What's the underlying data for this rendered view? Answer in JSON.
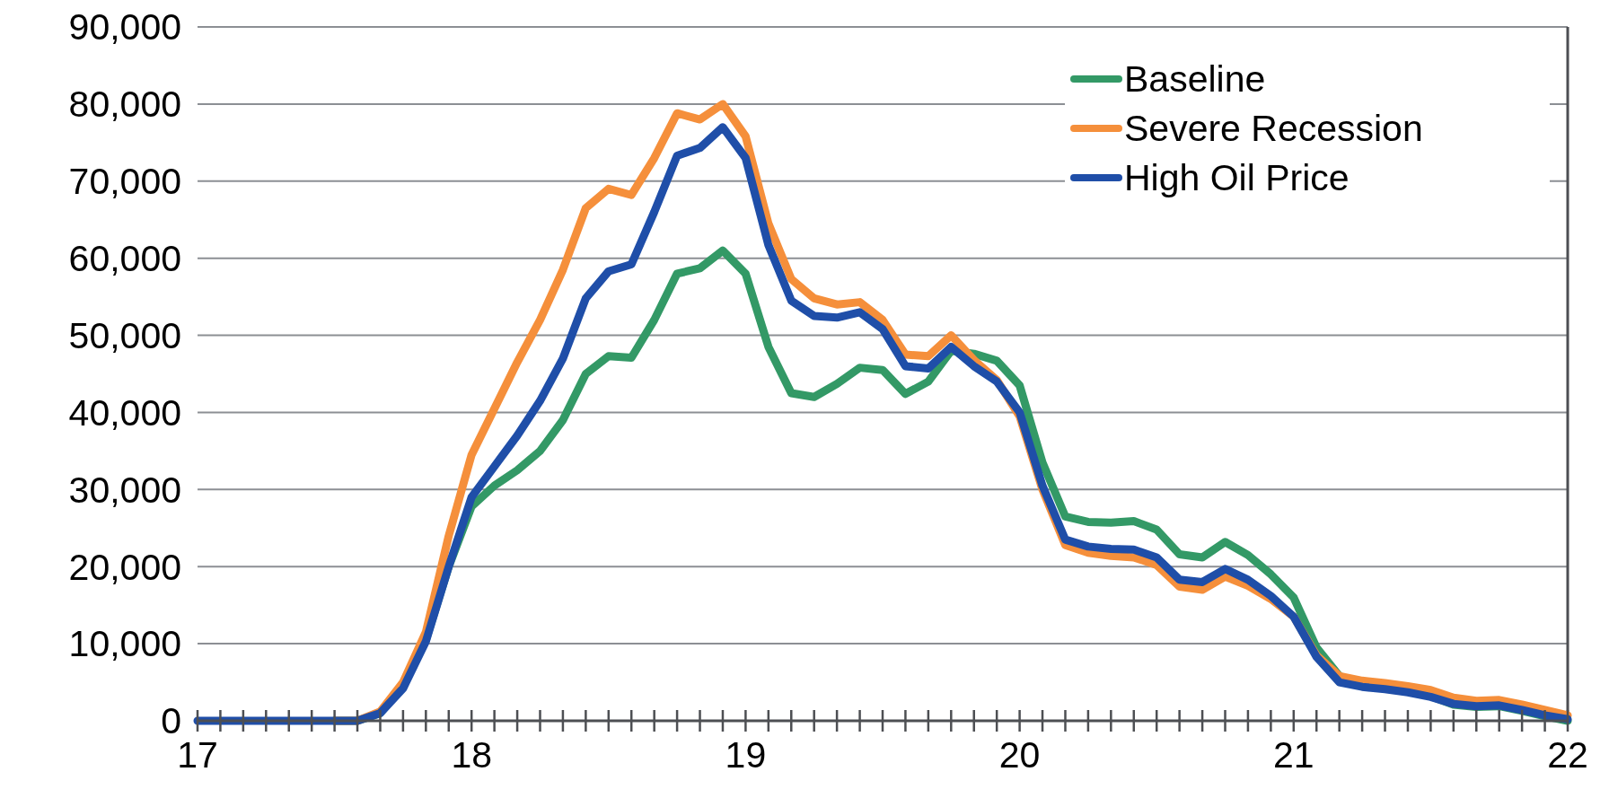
{
  "chart_data": {
    "type": "line",
    "x": [
      17,
      17.0833,
      17.1667,
      17.25,
      17.3333,
      17.4167,
      17.5,
      17.5833,
      17.6667,
      17.75,
      17.8333,
      17.9167,
      18,
      18.0833,
      18.1667,
      18.25,
      18.3333,
      18.4167,
      18.5,
      18.5833,
      18.6667,
      18.75,
      18.8333,
      18.9167,
      19,
      19.0833,
      19.1667,
      19.25,
      19.3333,
      19.4167,
      19.5,
      19.5833,
      19.6667,
      19.75,
      19.8333,
      19.9167,
      20,
      20.0833,
      20.1667,
      20.25,
      20.3333,
      20.4167,
      20.5,
      20.5833,
      20.6667,
      20.75,
      20.8333,
      20.9167,
      21,
      21.0833,
      21.1667,
      21.25,
      21.3333,
      21.4167,
      21.5,
      21.5833,
      21.6667,
      21.75,
      21.8333,
      21.9167,
      22
    ],
    "series": [
      {
        "name": "Baseline",
        "color": "#339966",
        "values": [
          null,
          null,
          null,
          null,
          null,
          null,
          0,
          0,
          1000,
          4500,
          10500,
          20000,
          27800,
          30500,
          32500,
          35000,
          39000,
          45000,
          47300,
          47100,
          52000,
          58000,
          58700,
          61000,
          58000,
          48500,
          42500,
          42000,
          43700,
          45800,
          45500,
          42400,
          44000,
          48000,
          47600,
          46700,
          43500,
          33500,
          26500,
          25800,
          25700,
          25900,
          24800,
          21600,
          21200,
          23200,
          21500,
          19000,
          16000,
          9500,
          5800,
          4700,
          4400,
          3900,
          3200,
          2100,
          1800,
          1900,
          1300,
          600,
          0
        ]
      },
      {
        "name": "Severe Recession",
        "color": "#f58f3b",
        "values": [
          null,
          null,
          null,
          null,
          null,
          null,
          0,
          0,
          1200,
          5000,
          11500,
          24000,
          34500,
          40500,
          46500,
          52000,
          58500,
          66500,
          69000,
          68200,
          73000,
          78800,
          78000,
          80000,
          75800,
          64500,
          57300,
          54800,
          54000,
          54300,
          52000,
          47500,
          47300,
          50000,
          46800,
          44200,
          39500,
          30000,
          22800,
          21800,
          21400,
          21200,
          20200,
          17400,
          17000,
          18700,
          17500,
          15800,
          13500,
          8500,
          5800,
          5200,
          4900,
          4500,
          4000,
          3000,
          2600,
          2700,
          2100,
          1400,
          700
        ]
      },
      {
        "name": "High Oil Price",
        "color": "#1f4ea8",
        "values": [
          0,
          0,
          0,
          0,
          0,
          0,
          0,
          0,
          1000,
          4200,
          10300,
          20000,
          29000,
          33000,
          37000,
          41500,
          47000,
          54800,
          58300,
          59200,
          66000,
          73300,
          74300,
          77000,
          73000,
          61700,
          54500,
          52500,
          52300,
          53000,
          50800,
          46000,
          45700,
          48500,
          46000,
          44000,
          40000,
          30500,
          23500,
          22600,
          22300,
          22200,
          21200,
          18300,
          18000,
          19700,
          18300,
          16200,
          13500,
          8300,
          5000,
          4400,
          4100,
          3700,
          3100,
          2200,
          1900,
          2000,
          1400,
          700,
          200
        ]
      }
    ],
    "xlim": [
      17,
      22
    ],
    "xticks": [
      17,
      18,
      19,
      20,
      21,
      22
    ],
    "ylim": [
      0,
      90000
    ],
    "yticks": [
      {
        "value": 0,
        "label": "0"
      },
      {
        "value": 10000,
        "label": "10,000"
      },
      {
        "value": 20000,
        "label": "20,000"
      },
      {
        "value": 30000,
        "label": "30,000"
      },
      {
        "value": 40000,
        "label": "40,000"
      },
      {
        "value": 50000,
        "label": "50,000"
      },
      {
        "value": 60000,
        "label": "60,000"
      },
      {
        "value": 70000,
        "label": "70,000"
      },
      {
        "value": 80000,
        "label": "80,000"
      },
      {
        "value": 90000,
        "label": "90,000"
      }
    ],
    "grid": "y",
    "legend": "top right",
    "marker": "none",
    "line_style": "solid"
  }
}
